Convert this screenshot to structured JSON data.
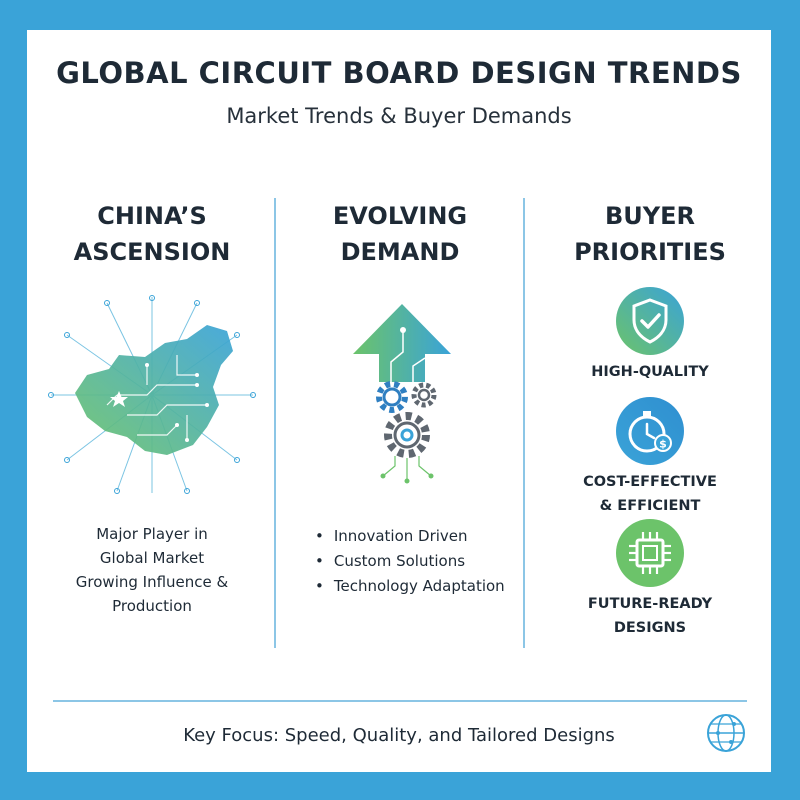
{
  "header": {
    "title": "GLOBAL CIRCUIT BOARD DESIGN TRENDS",
    "subtitle": "Market Trends & Buyer Demands"
  },
  "columns": [
    {
      "heading_lines": [
        "CHINA’S",
        "ASCENSION"
      ],
      "icon": "china-circuit-map-icon",
      "text_lines": [
        "Major Player in",
        "Global Market",
        "Growing Influence &",
        "Production"
      ]
    },
    {
      "heading_lines": [
        "EVOLVING",
        "DEMAND"
      ],
      "icon": "arrow-up-gears-icon",
      "bullets": [
        "Innovation Driven",
        "Custom Solutions",
        "Technology Adaptation"
      ]
    },
    {
      "heading_lines": [
        "BUYER",
        "PRIORITIES"
      ],
      "priorities": [
        {
          "icon": "shield-check-icon",
          "label_lines": [
            "HIGH-QUALITY"
          ]
        },
        {
          "icon": "stopwatch-dollar-icon",
          "label_lines": [
            "COST-EFFECTIVE",
            "& EFFICIENT"
          ]
        },
        {
          "icon": "chip-icon",
          "label_lines": [
            "FUTURE-READY",
            "DESIGNS"
          ]
        }
      ]
    }
  ],
  "footer": {
    "text": "Key Focus: Speed, Quality, and Tailored Designs",
    "icon": "circuit-globe-icon"
  },
  "colors": {
    "frame": "#3aa3d8",
    "blue": "#3aa3d8",
    "green": "#6cc36a",
    "text": "#1e2a36"
  }
}
